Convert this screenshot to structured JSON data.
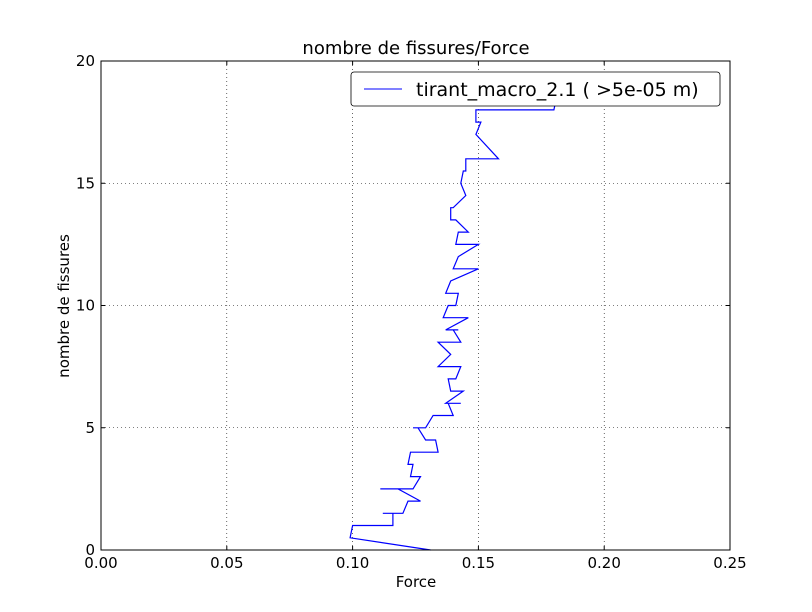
{
  "chart_data": {
    "type": "line",
    "title": "nombre de fissures/Force",
    "xlabel": "Force",
    "ylabel": "nombre de fissures",
    "xlim": [
      0.0,
      0.25
    ],
    "ylim": [
      0,
      20
    ],
    "xticks": [
      "0.00",
      "0.05",
      "0.10",
      "0.15",
      "0.20",
      "0.25"
    ],
    "yticks": [
      "0",
      "5",
      "10",
      "15",
      "20"
    ],
    "grid": true,
    "legend_position": "top-right",
    "series": [
      {
        "name": "tirant_macro_2.1 ( >5e-05 m)",
        "color": "#0000ff",
        "x": [
          0.131,
          0.099,
          0.1,
          0.111,
          0.116,
          0.116,
          0.112,
          0.12,
          0.122,
          0.127,
          0.118,
          0.111,
          0.124,
          0.127,
          0.123,
          0.124,
          0.122,
          0.123,
          0.134,
          0.133,
          0.129,
          0.126,
          0.124,
          0.129,
          0.132,
          0.14,
          0.138,
          0.143,
          0.137,
          0.144,
          0.139,
          0.138,
          0.141,
          0.143,
          0.134,
          0.139,
          0.134,
          0.143,
          0.14,
          0.142,
          0.137,
          0.146,
          0.136,
          0.138,
          0.141,
          0.142,
          0.137,
          0.139,
          0.15,
          0.14,
          0.142,
          0.15,
          0.143,
          0.145,
          0.141,
          0.142,
          0.146,
          0.141,
          0.139,
          0.139,
          0.14,
          0.145,
          0.143,
          0.144,
          0.145,
          0.145,
          0.158,
          0.149,
          0.151,
          0.149,
          0.149,
          0.154,
          0.155,
          0.18,
          0.181,
          0.236,
          0.236,
          0.241
        ],
        "y": [
          0.0,
          0.5,
          1.0,
          1.0,
          1.0,
          1.5,
          1.5,
          1.5,
          2.0,
          2.0,
          2.5,
          2.5,
          2.5,
          3.0,
          3.0,
          3.5,
          3.5,
          4.0,
          4.0,
          4.5,
          4.5,
          5.0,
          5.0,
          5.0,
          5.5,
          5.5,
          6.0,
          6.0,
          6.0,
          6.5,
          6.5,
          7.0,
          7.0,
          7.5,
          7.5,
          8.0,
          8.5,
          8.5,
          9.0,
          9.0,
          9.0,
          9.5,
          9.5,
          10.0,
          10.0,
          10.5,
          10.5,
          11.0,
          11.5,
          11.5,
          12.0,
          12.5,
          12.5,
          12.5,
          12.5,
          13.0,
          13.0,
          13.5,
          13.5,
          14.0,
          14.0,
          14.5,
          15.0,
          15.5,
          15.5,
          16.0,
          16.0,
          17.0,
          17.5,
          17.5,
          18.0,
          18.0,
          18.0,
          18.0,
          18.5,
          18.5,
          19.0,
          19.5
        ]
      }
    ]
  }
}
